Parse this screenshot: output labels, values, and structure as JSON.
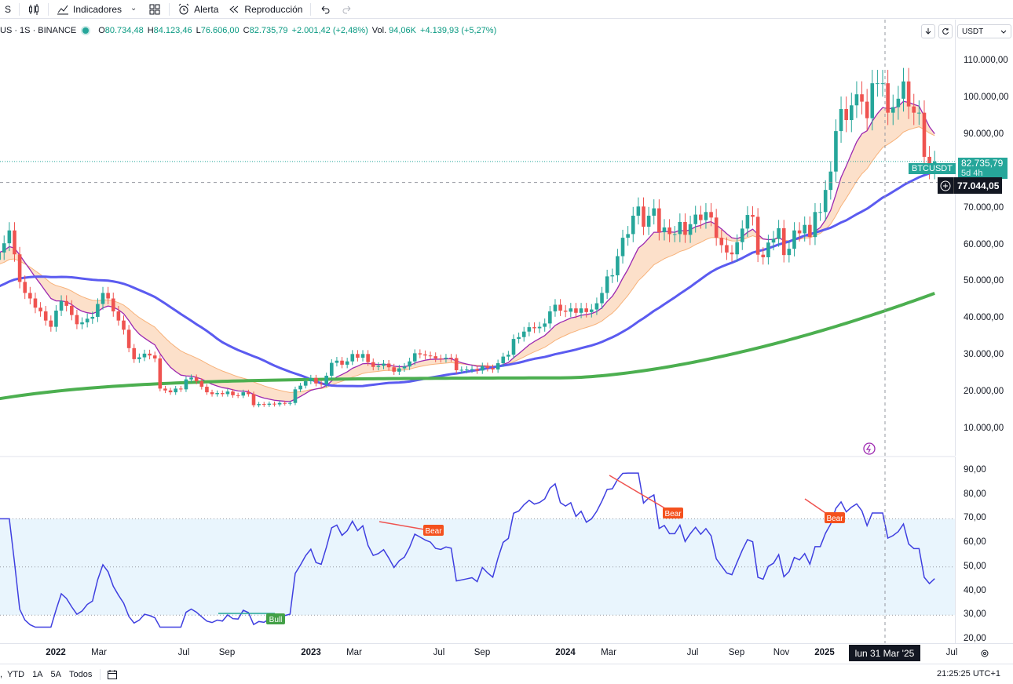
{
  "toolbar": {
    "symbol_short": "S",
    "indicators_label": "Indicadores",
    "alert_label": "Alerta",
    "replay_label": "Reproducción"
  },
  "legend": {
    "symbol": "US · 1S · BINANCE",
    "open_key": "O",
    "open": "80.734,48",
    "high_key": "H",
    "high": "84.123,46",
    "low_key": "L",
    "low": "76.606,00",
    "close_key": "C",
    "close": "82.735,79",
    "change": "+2.001,42 (+2,48%)",
    "vol_key": "Vol.",
    "volume": "94,06K",
    "vol_change": "+4.139,93 (+5,27%)"
  },
  "currency": "USDT",
  "price_axis": [
    "110.000,00",
    "100.000,00",
    "90.000,00",
    "80.000,00",
    "70.000,00",
    "60.000,00",
    "50.000,00",
    "40.000,00",
    "30.000,00",
    "20.000,00",
    "10.000,00"
  ],
  "price_tag": {
    "symbol": "BTCUSDT",
    "price": "82.735,79",
    "countdown": "5d 4h"
  },
  "crosshair_price": "77.044,05",
  "rsi_axis": [
    "90,00",
    "80,00",
    "70,00",
    "60,00",
    "50,00",
    "40,00",
    "30,00",
    "20,00"
  ],
  "rsi_labels": {
    "bear": "Bear",
    "bull": "Bull"
  },
  "time_axis": [
    {
      "label": "2022",
      "bold": true
    },
    {
      "label": "Mar",
      "bold": false
    },
    {
      "label": "Jul",
      "bold": false
    },
    {
      "label": "Sep",
      "bold": false
    },
    {
      "label": "2023",
      "bold": true
    },
    {
      "label": "Mar",
      "bold": false
    },
    {
      "label": "Jul",
      "bold": false
    },
    {
      "label": "Sep",
      "bold": false
    },
    {
      "label": "2024",
      "bold": true
    },
    {
      "label": "Mar",
      "bold": false
    },
    {
      "label": "Jul",
      "bold": false
    },
    {
      "label": "Sep",
      "bold": false
    },
    {
      "label": "Nov",
      "bold": false
    },
    {
      "label": "2025",
      "bold": true
    },
    {
      "label": "Jul",
      "bold": false
    }
  ],
  "cursor_date": "lun 31 Mar '25",
  "ranges": [
    "YTD",
    "1A",
    "5A",
    "Todos"
  ],
  "clock": "21:25:25 UTC+1",
  "colors": {
    "up": "#26a69a",
    "down": "#ef5350",
    "ma_blue": "#5b5bf0",
    "ma_green": "#4caf50",
    "ma_purple": "#9c27b0",
    "ma_band": "#f7b27a",
    "rsi": "#3f3fe0"
  },
  "chart_data": {
    "type": "candlestick",
    "interval": "1W",
    "price_range": [
      0,
      117000
    ],
    "candles_close": [
      56000,
      58000,
      60500,
      64000,
      57500,
      50000,
      47000,
      45500,
      43000,
      42000,
      39500,
      37800,
      42200,
      44800,
      43500,
      41000,
      38500,
      39000,
      40000,
      40500,
      44000,
      47000,
      45500,
      42000,
      39500,
      37000,
      32000,
      29000,
      29500,
      30500,
      30000,
      29200,
      21000,
      20500,
      20000,
      21000,
      20800,
      23500,
      24000,
      23000,
      21500,
      20000,
      19500,
      19800,
      19500,
      20200,
      19200,
      19100,
      20000,
      19500,
      16500,
      16800,
      16600,
      16900,
      16700,
      17100,
      17000,
      17100,
      20800,
      21800,
      23000,
      23900,
      22400,
      22200,
      24500,
      28000,
      28600,
      27500,
      28400,
      30400,
      29400,
      30400,
      28200,
      26900,
      27200,
      27800,
      26800,
      25600,
      26500,
      27000,
      28400,
      30600,
      30300,
      30000,
      29800,
      29200,
      29100,
      29400,
      29300,
      26000,
      26100,
      26200,
      26300,
      25900,
      27100,
      26600,
      26200,
      27900,
      29700,
      30200,
      34500,
      35000,
      36500,
      37700,
      37400,
      37800,
      38700,
      42000,
      43800,
      42200,
      41900,
      42800,
      41600,
      42800,
      41800,
      42500,
      44200,
      47000,
      51500,
      51800,
      57000,
      62000,
      63000,
      68000,
      70500,
      65000,
      68000,
      70000,
      63500,
      64800,
      63000,
      63000,
      66300,
      62800,
      65700,
      68300,
      66800,
      69000,
      67500,
      62000,
      60000,
      58000,
      57500,
      60800,
      64500,
      68200,
      67700,
      57400,
      56700,
      60700,
      61700,
      64600,
      57300,
      59000,
      64000,
      63200,
      65500,
      62200,
      69000,
      69000,
      75000,
      80000,
      91000,
      97000,
      94000,
      98000,
      101000,
      99000,
      94500,
      104000,
      104000,
      104000,
      96000,
      97500,
      99800,
      104500,
      97700,
      96000,
      96000,
      84000,
      80734,
      82735
    ],
    "rsi_range": [
      20,
      90
    ],
    "rsi_bands": [
      30,
      50,
      70
    ],
    "annotations": [
      "Bear",
      "Bear",
      "Bear",
      "Bull"
    ]
  }
}
